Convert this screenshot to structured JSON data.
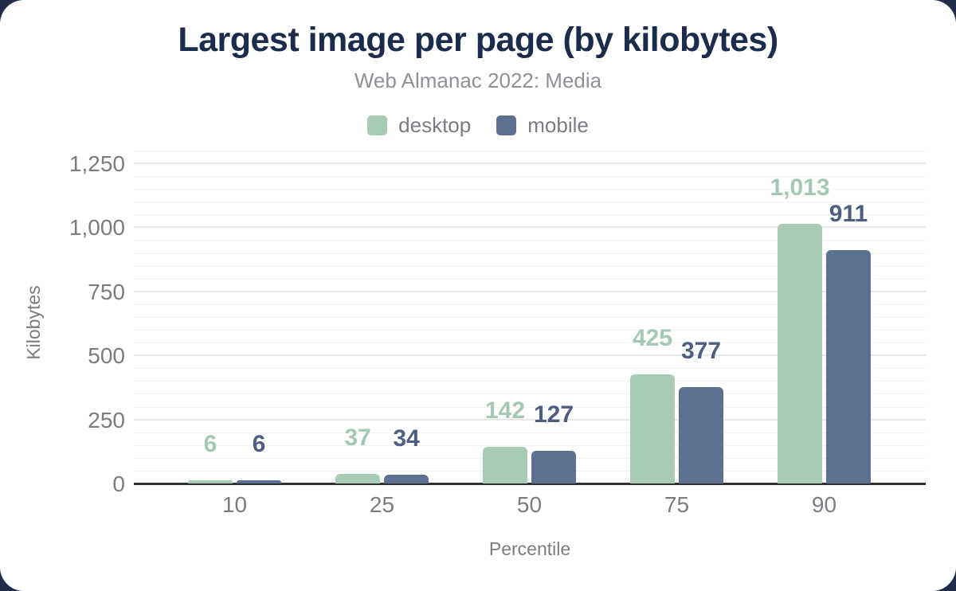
{
  "figure": {
    "title": "Largest image per page (by kilobytes)",
    "subtitle": "Web Almanac 2022: Media"
  },
  "legend": {
    "items": [
      {
        "label": "desktop",
        "color": "#a8cbb6"
      },
      {
        "label": "mobile",
        "color": "#5e7092"
      }
    ]
  },
  "axes": {
    "y_title": "Kilobytes",
    "x_title": "Percentile"
  },
  "chart_data": {
    "type": "bar",
    "title": "Largest image per page (by kilobytes)",
    "subtitle": "Web Almanac 2022: Media",
    "categories": [
      "10",
      "25",
      "50",
      "75",
      "90"
    ],
    "series": [
      {
        "name": "desktop",
        "color": "#a8cbb6",
        "label_color": "#a3c8b3",
        "values": [
          6,
          37,
          142,
          425,
          1013
        ],
        "labels": [
          "6",
          "37",
          "142",
          "425",
          "1,013"
        ]
      },
      {
        "name": "mobile",
        "color": "#5e7092",
        "label_color": "#4d5e80",
        "values": [
          6,
          34,
          127,
          377,
          911
        ],
        "labels": [
          "6",
          "34",
          "127",
          "377",
          "911"
        ]
      }
    ],
    "xlabel": "Percentile",
    "ylabel": "Kilobytes",
    "ylim": [
      0,
      1250
    ],
    "yticks": [
      0,
      250,
      500,
      750,
      1000,
      1250
    ],
    "ytick_labels": [
      "0",
      "250",
      "500",
      "750",
      "1,000",
      "1,250"
    ],
    "minor_grid_step": 50,
    "grid": true,
    "legend_position": "top",
    "data_labels": true
  },
  "colors": {
    "title": "#1c2c4c",
    "subtitle": "#8d9196",
    "tick": "#797c80",
    "axis_line": "#2e3033",
    "grid_major": "#e8e8e8",
    "grid_minor": "#f4f4f4",
    "corner_background": "#1e2b49",
    "card_background": "#ffffff"
  }
}
